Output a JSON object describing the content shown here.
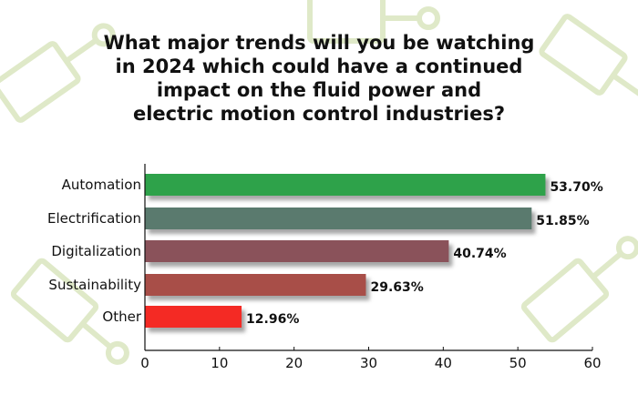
{
  "chart_data": {
    "type": "bar",
    "orientation": "horizontal",
    "title": "What major trends will you be watching\nin 2024 which could have a continued\nimpact on the fluid power and\nelectric motion control industries?",
    "categories": [
      "Automation",
      "Electrification",
      "Digitalization",
      "Sustainability",
      "Other"
    ],
    "values": [
      53.7,
      51.85,
      40.74,
      29.63,
      12.96
    ],
    "data_labels": [
      "53.70%",
      "51.85%",
      "40.74%",
      "29.63%",
      "12.96%"
    ],
    "colors": [
      "#2ea24a",
      "#5a7a6e",
      "#8a525a",
      "#a84e48",
      "#f42a24"
    ],
    "xlim": [
      0,
      60
    ],
    "xticks": [
      "0",
      "10",
      "20",
      "30",
      "40",
      "50",
      "60"
    ],
    "xlabel": "",
    "ylabel": "",
    "grid": false,
    "background": "faint green hydraulic-cylinder line-art pattern"
  }
}
